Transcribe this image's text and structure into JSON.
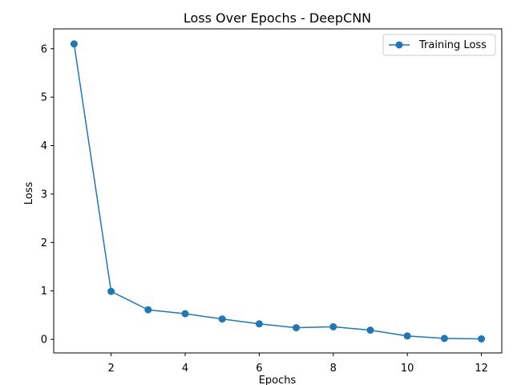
{
  "chart_data": {
    "type": "line",
    "title": "Loss Over Epochs - DeepCNN",
    "xlabel": "Epochs",
    "ylabel": "Loss",
    "xlim": [
      0.45,
      12.55
    ],
    "ylim": [
      -0.28,
      6.41
    ],
    "xticks": [
      2,
      4,
      6,
      8,
      10,
      12
    ],
    "yticks": [
      0,
      1,
      2,
      3,
      4,
      5,
      6
    ],
    "grid": false,
    "legend_position": "top-right",
    "series": [
      {
        "name": "Training Loss",
        "color": "#1f77b4",
        "marker": "circle",
        "x": [
          1,
          2,
          3,
          4,
          5,
          6,
          7,
          8,
          9,
          10,
          11,
          12
        ],
        "y": [
          6.1,
          0.99,
          0.61,
          0.53,
          0.42,
          0.32,
          0.24,
          0.26,
          0.19,
          0.07,
          0.02,
          0.01
        ]
      }
    ]
  }
}
